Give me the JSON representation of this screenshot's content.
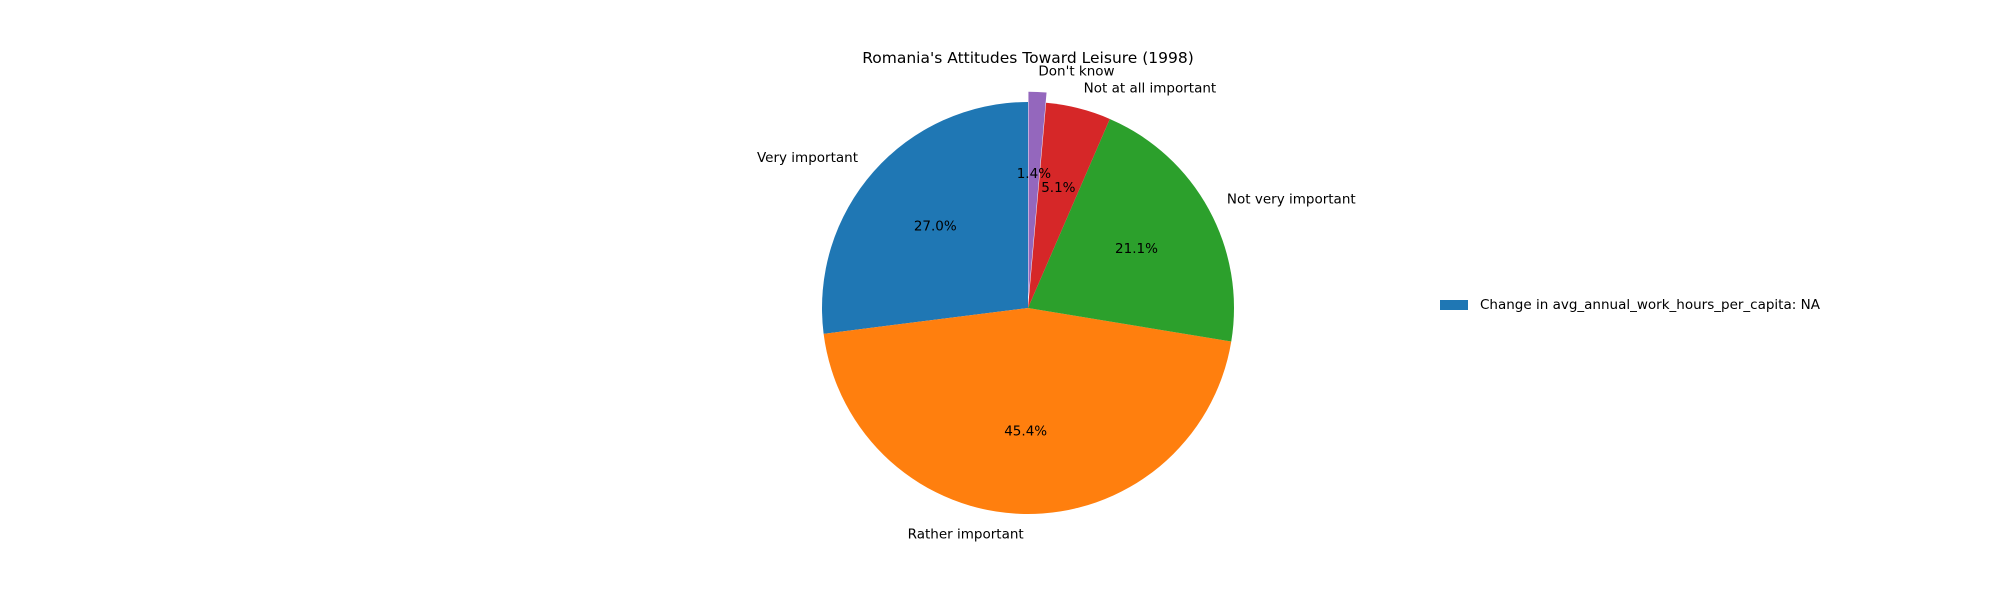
{
  "chart_data": {
    "type": "pie",
    "title": "Romania's Attitudes Toward Leisure (1998)",
    "start_angle_deg": 90,
    "counterclockwise": true,
    "slices": [
      {
        "label": "Very important",
        "value": 27.0,
        "pct_label": "27.0%",
        "color": "#1f77b4",
        "explode": 0
      },
      {
        "label": "Rather important",
        "value": 45.4,
        "pct_label": "45.4%",
        "color": "#ff7f0e",
        "explode": 0
      },
      {
        "label": "Not very important",
        "value": 21.1,
        "pct_label": "21.1%",
        "color": "#2ca02c",
        "explode": 0
      },
      {
        "label": "Not at all important",
        "value": 5.1,
        "pct_label": "5.1%",
        "color": "#d62728",
        "explode": 0
      },
      {
        "label": "Don't know",
        "value": 1.4,
        "pct_label": "1.4%",
        "color": "#9467bd",
        "explode": 0.05
      }
    ],
    "legend": {
      "placement": "right",
      "entries": [
        {
          "label": "Change in avg_annual_work_hours_per_capita: NA",
          "color": "#1f77b4"
        }
      ]
    }
  }
}
